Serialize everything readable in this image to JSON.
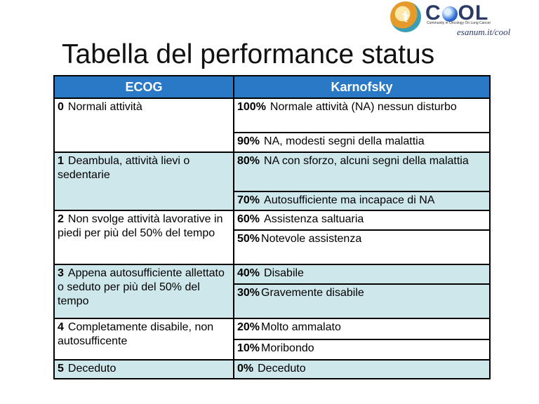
{
  "logo": {
    "name_part1": "C",
    "name_part2": "OL",
    "tagline": "Community in Oncology On Lung Cancer",
    "site": "esanum.it/cool"
  },
  "title": "Tabella del performance status",
  "table": {
    "header_ecog": "ECOG",
    "header_karnofsky": "Karnofsky",
    "groups": [
      {
        "ecog_num": "0",
        "ecog_text": "Normali attività",
        "rows": [
          {
            "pct": "100%",
            "text": "Normale attività (NA) nessun disturbo"
          },
          {
            "pct": "90%",
            "text": "NA, modesti segni della malattia"
          }
        ]
      },
      {
        "ecog_num": "1",
        "ecog_text": "Deambula, attività lievi o sedentarie",
        "rows": [
          {
            "pct": "80%",
            "text": "NA con sforzo, alcuni segni della malattia"
          },
          {
            "pct": "70%",
            "text": "Autosufficiente ma incapace di NA"
          }
        ]
      },
      {
        "ecog_num": "2",
        "ecog_text": "Non svolge attività lavorative in piedi per più del 50% del tempo",
        "rows": [
          {
            "pct": "60%",
            "text": "Assistenza saltuaria"
          },
          {
            "pct": "50%",
            "text": "Notevole assistenza"
          }
        ]
      },
      {
        "ecog_num": "3",
        "ecog_text": "Appena autosufficiente allettato o seduto per più del 50% del tempo",
        "rows": [
          {
            "pct": "40%",
            "text": "Disabile"
          },
          {
            "pct": "30%",
            "text": "Gravemente disabile"
          }
        ]
      },
      {
        "ecog_num": "4",
        "ecog_text": "Completamente disabile, non autosufficente",
        "rows": [
          {
            "pct": "20%",
            "text": "Molto ammalato"
          },
          {
            "pct": "10%",
            "text": "Moribondo"
          }
        ]
      },
      {
        "ecog_num": "5",
        "ecog_text": "Deceduto",
        "rows": [
          {
            "pct": "0%",
            "text": "Deceduto"
          }
        ]
      }
    ]
  }
}
